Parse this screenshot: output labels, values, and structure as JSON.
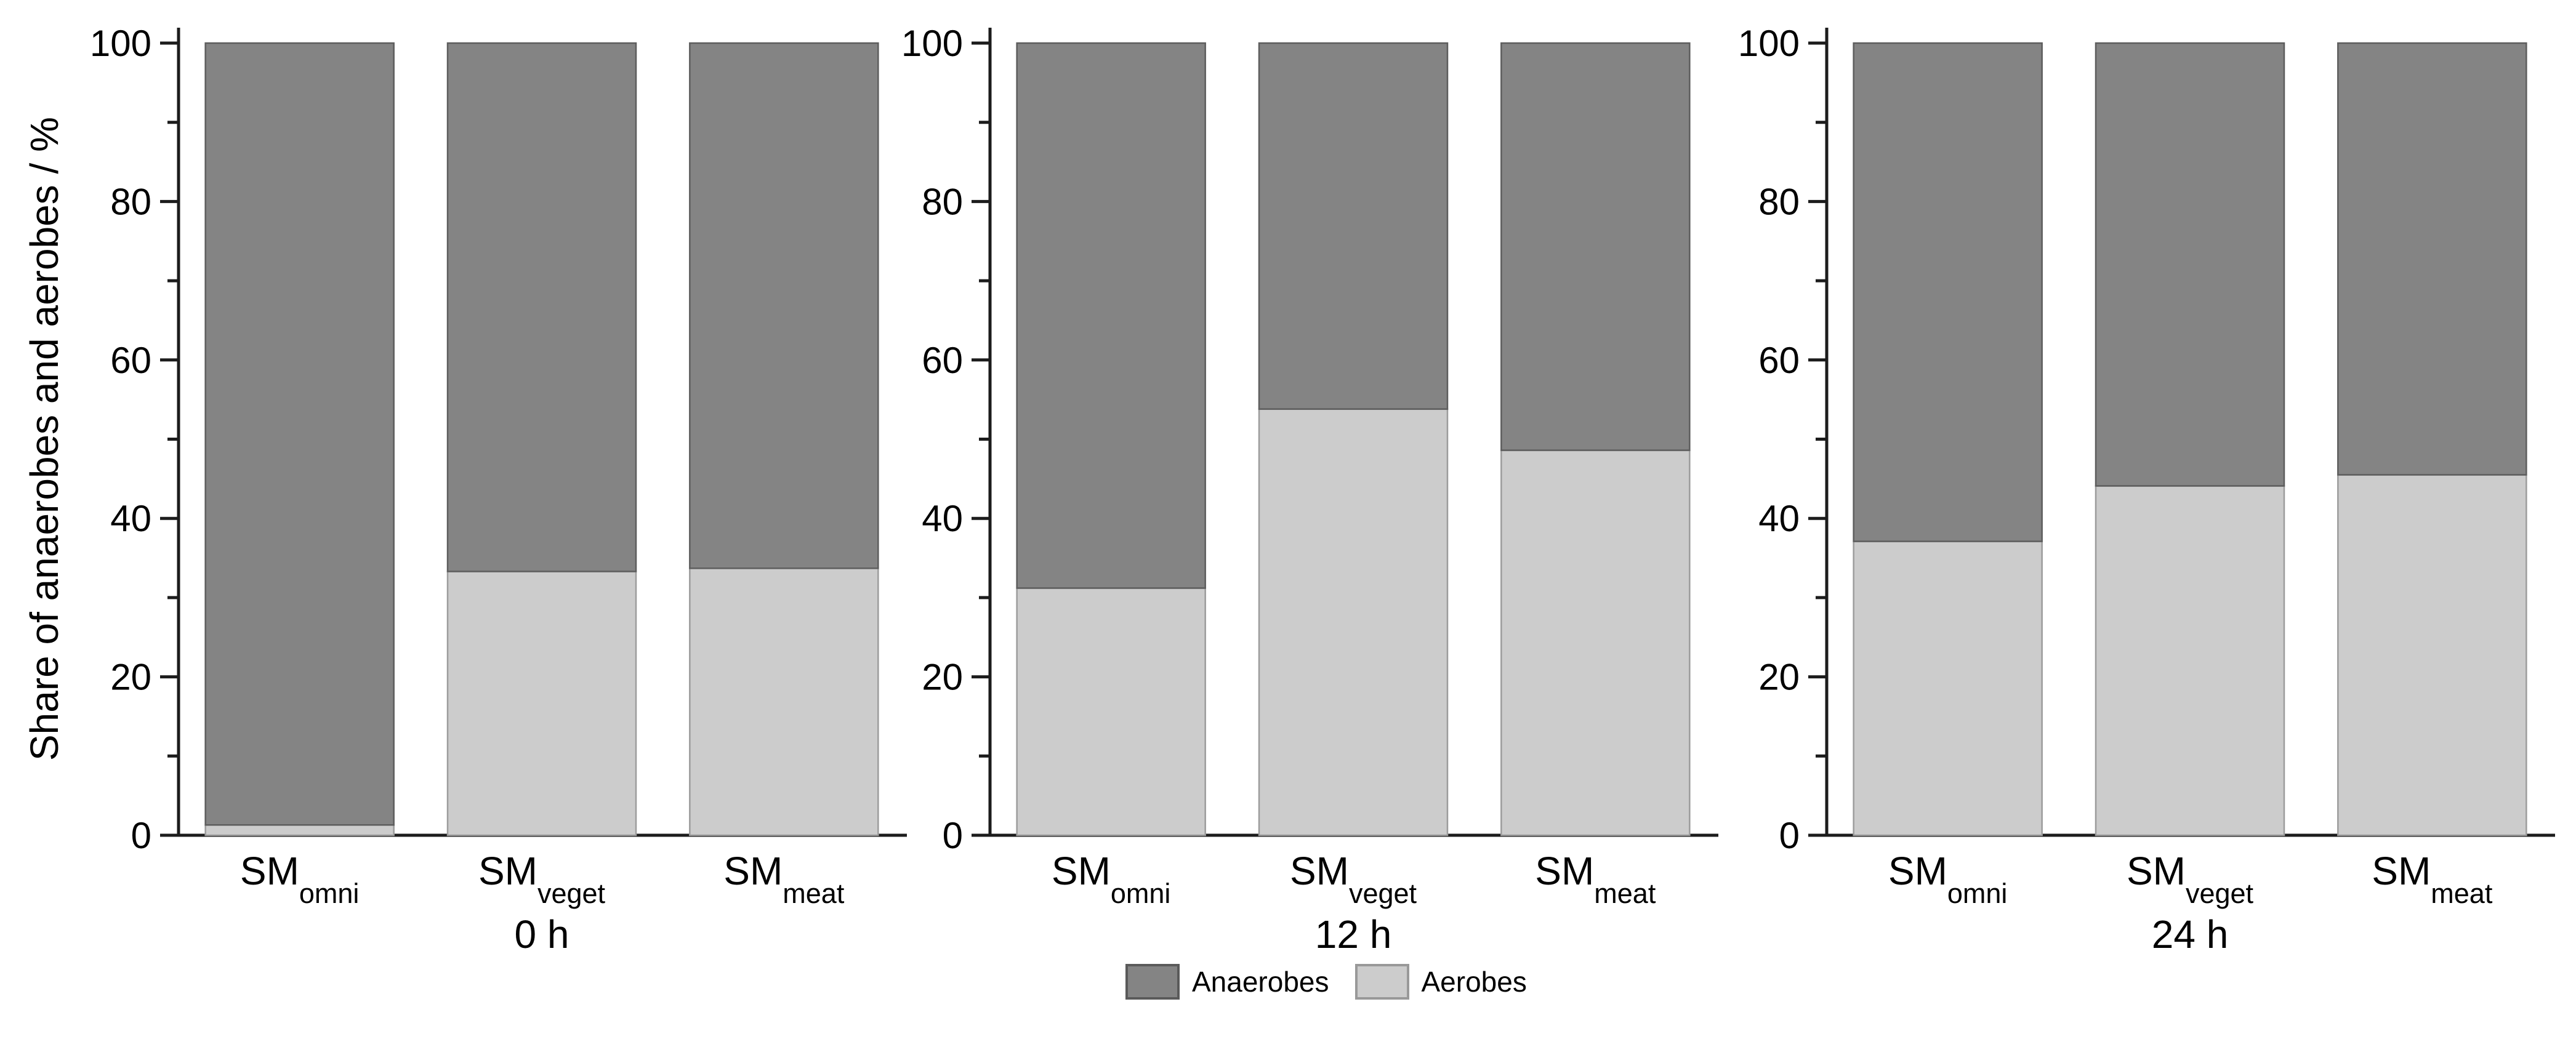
{
  "figure": {
    "background": "#ffffff"
  },
  "y_axis": {
    "title": "Share of anaerobes and aerobes / %",
    "tick_labels": [
      "0",
      "20",
      "40",
      "60",
      "80",
      "100"
    ],
    "major_step": 20,
    "minor_step": 10,
    "range": [
      0,
      100
    ]
  },
  "legend": {
    "items": [
      {
        "label": "Anaerobes",
        "color": "#848484",
        "border": "#5a5a5a"
      },
      {
        "label": "Aerobes",
        "color": "#cccccc",
        "border": "#999999"
      }
    ]
  },
  "chart_data": {
    "type": "bar",
    "stacked": true,
    "normalized_to": 100,
    "unit": "%",
    "title": "",
    "xlabel": "",
    "ylabel": "Share of anaerobes and aerobes / %",
    "ylim": [
      0,
      100
    ],
    "grid": false,
    "legend_position": "bottom-center",
    "categories": [
      {
        "base": "SM",
        "sub": "omni"
      },
      {
        "base": "SM",
        "sub": "veget"
      },
      {
        "base": "SM",
        "sub": "meat"
      }
    ],
    "panels": [
      {
        "group_label": "0 h",
        "series": [
          {
            "name": "Anaerobes",
            "color": "#848484",
            "values": [
              98.7,
              66.7,
              66.3
            ]
          },
          {
            "name": "Aerobes",
            "color": "#cccccc",
            "values": [
              1.3,
              33.3,
              33.7
            ]
          }
        ]
      },
      {
        "group_label": "12 h",
        "series": [
          {
            "name": "Anaerobes",
            "color": "#848484",
            "values": [
              68.8,
              46.2,
              51.4
            ]
          },
          {
            "name": "Aerobes",
            "color": "#cccccc",
            "values": [
              31.2,
              53.8,
              48.6
            ]
          }
        ]
      },
      {
        "group_label": "24 h",
        "series": [
          {
            "name": "Anaerobes",
            "color": "#848484",
            "values": [
              62.9,
              55.9,
              54.5
            ]
          },
          {
            "name": "Aerobes",
            "color": "#cccccc",
            "values": [
              37.1,
              44.1,
              45.5
            ]
          }
        ]
      }
    ]
  }
}
